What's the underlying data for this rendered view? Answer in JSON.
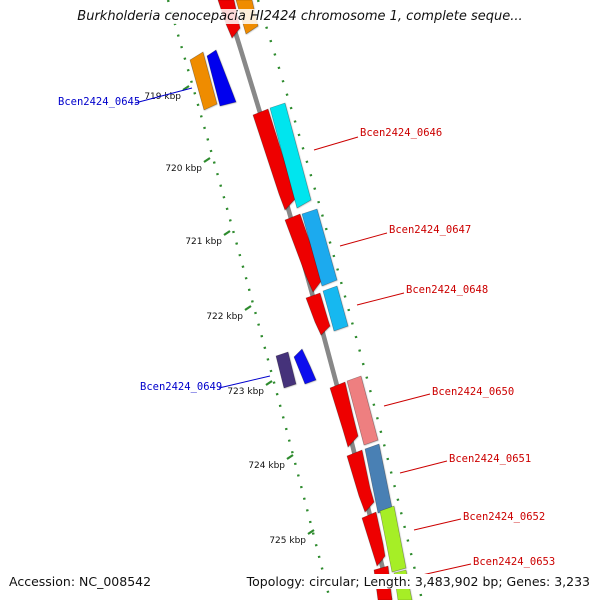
{
  "title": "Burkholderia cenocepacia HI2424 chromosome 1, complete seque...",
  "footer": {
    "accession": "Accession: NC_008542",
    "info": "Topology: circular; Length: 3,483,902 bp; Genes: 3,233"
  },
  "ticks": [
    {
      "label": "719 kbp",
      "kbp": 719
    },
    {
      "label": "720 kbp",
      "kbp": 720
    },
    {
      "label": "721 kbp",
      "kbp": 721
    },
    {
      "label": "722 kbp",
      "kbp": 722
    },
    {
      "label": "723 kbp",
      "kbp": 723
    },
    {
      "label": "724 kbp",
      "kbp": 724
    },
    {
      "label": "725 kbp",
      "kbp": 725
    }
  ],
  "genes": [
    {
      "name": "Bcen2424_0645",
      "strand": "minus",
      "color": "#0000ee",
      "label_color": "#0000cc"
    },
    {
      "name": "Bcen2424_0646",
      "strand": "plus",
      "color": "#00e5ee",
      "label_color": "#cc0000"
    },
    {
      "name": "Bcen2424_0647",
      "strand": "plus",
      "color": "#1eaaee",
      "label_color": "#cc0000"
    },
    {
      "name": "Bcen2424_0648",
      "strand": "plus",
      "color": "#18b8f0",
      "label_color": "#cc0000"
    },
    {
      "name": "Bcen2424_0649",
      "strand": "minus",
      "color": "#0a10ee",
      "label_color": "#0000cc"
    },
    {
      "name": "Bcen2424_0650",
      "strand": "plus",
      "color": "#ee7f80",
      "label_color": "#cc0000"
    },
    {
      "name": "Bcen2424_0651",
      "strand": "plus",
      "color": "#4a80b4",
      "label_color": "#cc0000"
    },
    {
      "name": "Bcen2424_0652",
      "strand": "plus",
      "color": "#a6ee28",
      "label_color": "#cc0000"
    },
    {
      "name": "Bcen2424_0653",
      "strand": "plus",
      "color": "#a6ee28",
      "label_color": "#cc0000"
    }
  ],
  "colors": {
    "backbone": "#888888",
    "tick": "#2e8b2e",
    "plus_strand": "#ee0000",
    "minus_strand_cog_a": "#ef8c00",
    "minus_strand_cog_b": "#45307a"
  }
}
